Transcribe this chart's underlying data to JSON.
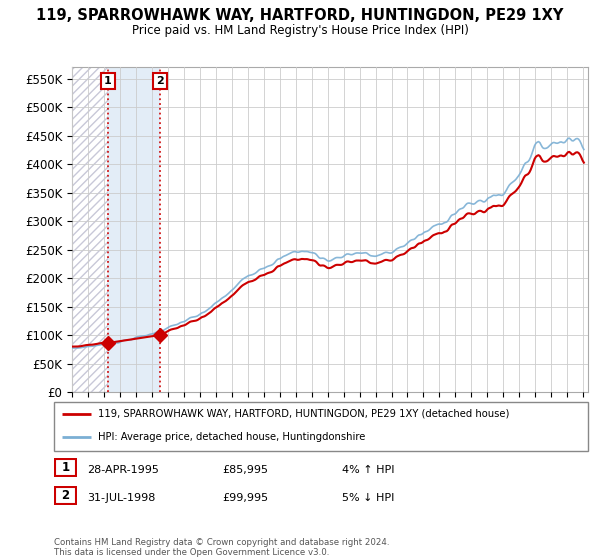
{
  "title": "119, SPARROWHAWK WAY, HARTFORD, HUNTINGDON, PE29 1XY",
  "subtitle": "Price paid vs. HM Land Registry's House Price Index (HPI)",
  "ylim": [
    0,
    570000
  ],
  "yticks": [
    0,
    50000,
    100000,
    150000,
    200000,
    250000,
    300000,
    350000,
    400000,
    450000,
    500000,
    550000
  ],
  "ytick_labels": [
    "£0",
    "£50K",
    "£100K",
    "£150K",
    "£200K",
    "£250K",
    "£300K",
    "£350K",
    "£400K",
    "£450K",
    "£500K",
    "£550K"
  ],
  "sale1_date": "28-APR-1995",
  "sale1_price": 85995,
  "sale1_hpi": "4% ↑ HPI",
  "sale1_label": "1",
  "sale1_x": 1995.25,
  "sale2_date": "31-JUL-1998",
  "sale2_price": 99995,
  "sale2_hpi": "5% ↓ HPI",
  "sale2_label": "2",
  "sale2_x": 1998.5,
  "legend_line1": "119, SPARROWHAWK WAY, HARTFORD, HUNTINGDON, PE29 1XY (detached house)",
  "legend_line2": "HPI: Average price, detached house, Huntingdonshire",
  "footer": "Contains HM Land Registry data © Crown copyright and database right 2024.\nThis data is licensed under the Open Government Licence v3.0.",
  "price_color": "#cc0000",
  "hpi_color": "#7bafd4",
  "grid_color": "#cccccc",
  "label_box_color": "#cc0000",
  "xlim_start": 1993.0,
  "xlim_end": 2025.3
}
